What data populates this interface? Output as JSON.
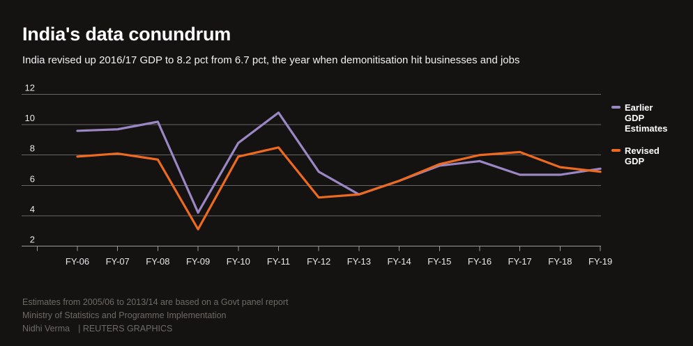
{
  "header": {
    "title": "India's data conundrum",
    "subtitle": "India revised up 2016/17 GDP to 8.2 pct from 6.7 pct, the year when demonitisation hit businesses and jobs"
  },
  "chart_data": {
    "type": "line",
    "categories": [
      "FY-06",
      "FY-07",
      "FY-08",
      "FY-09",
      "FY-10",
      "FY-11",
      "FY-12",
      "FY-13",
      "FY-14",
      "FY-15",
      "FY-16",
      "FY-17",
      "FY-18",
      "FY-19"
    ],
    "series": [
      {
        "name": "Earlier GDP Estimates",
        "color": "#9a87c4",
        "values": [
          9.6,
          9.7,
          10.2,
          4.2,
          8.8,
          10.8,
          6.9,
          5.4,
          6.3,
          7.3,
          7.6,
          6.7,
          6.7,
          7.1
        ]
      },
      {
        "name": "Revised GDP",
        "color": "#ee6a1f",
        "values": [
          7.9,
          8.1,
          7.7,
          3.1,
          7.9,
          8.5,
          5.2,
          5.4,
          6.3,
          7.4,
          8.0,
          8.2,
          7.2,
          6.9
        ]
      }
    ],
    "unit": "pct",
    "ylim": [
      2,
      12
    ],
    "yticks": [
      2,
      4,
      6,
      8,
      10,
      12
    ],
    "grid": true,
    "legend_position": "right",
    "grid_color": "#676767",
    "axis_color": "#9b9b9b",
    "tick_label_color": "#e9e9e9"
  },
  "footer": {
    "note": "Estimates from 2005/06 to 2013/14 are based on a Govt panel report",
    "source": "Ministry of Statistics and Programme Implementation",
    "byline": "Nidhi Verma",
    "credit": "| REUTERS GRAPHICS"
  }
}
